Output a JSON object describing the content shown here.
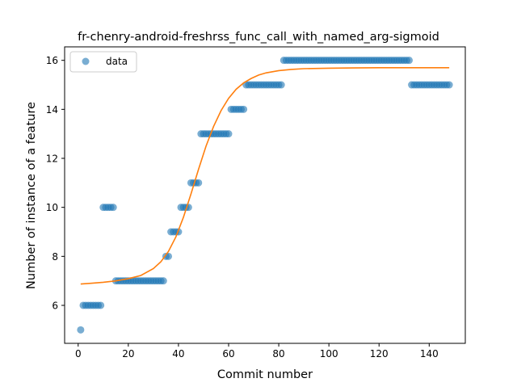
{
  "chart_data": {
    "type": "scatter",
    "title": "fr-chenry-android-freshrss_func_call_with_named_arg-sigmoid",
    "xlabel": "Commit number",
    "ylabel": "Number of instance of a feature",
    "xlim": [
      -5.4,
      154.4
    ],
    "ylim": [
      4.45,
      16.55
    ],
    "xticks": [
      0,
      20,
      40,
      60,
      80,
      100,
      120,
      140
    ],
    "yticks": [
      6,
      8,
      10,
      12,
      14,
      16
    ],
    "grid": false,
    "legend": {
      "position": "top-left",
      "entries": [
        "data"
      ]
    },
    "colors": {
      "data": "#1f77b4",
      "fit": "#ff7f0e"
    },
    "series": [
      {
        "name": "data",
        "kind": "scatter",
        "x": [
          1,
          2,
          3,
          4,
          5,
          6,
          7,
          8,
          9,
          10,
          11,
          12,
          13,
          14,
          15,
          16,
          17,
          18,
          19,
          20,
          21,
          22,
          23,
          24,
          25,
          26,
          27,
          28,
          29,
          30,
          31,
          32,
          33,
          34,
          35,
          36,
          37,
          38,
          39,
          40,
          41,
          42,
          43,
          44,
          45,
          46,
          47,
          48,
          49,
          50,
          51,
          52,
          53,
          54,
          55,
          56,
          57,
          58,
          59,
          60,
          61,
          62,
          63,
          64,
          65,
          66,
          67,
          68,
          69,
          70,
          71,
          72,
          73,
          74,
          75,
          76,
          77,
          78,
          79,
          80,
          81,
          82,
          83,
          84,
          85,
          86,
          87,
          88,
          89,
          90,
          91,
          92,
          93,
          94,
          95,
          96,
          97,
          98,
          99,
          100,
          101,
          102,
          103,
          104,
          105,
          106,
          107,
          108,
          109,
          110,
          111,
          112,
          113,
          114,
          115,
          116,
          117,
          118,
          119,
          120,
          121,
          122,
          123,
          124,
          125,
          126,
          127,
          128,
          129,
          130,
          131,
          132,
          133,
          134,
          135,
          136,
          137,
          138,
          139,
          140,
          141,
          142,
          143,
          144,
          145,
          146,
          147,
          148
        ],
        "y": [
          5,
          6,
          6,
          6,
          6,
          6,
          6,
          6,
          6,
          10,
          10,
          10,
          10,
          10,
          7,
          7,
          7,
          7,
          7,
          7,
          7,
          7,
          7,
          7,
          7,
          7,
          7,
          7,
          7,
          7,
          7,
          7,
          7,
          7,
          8,
          8,
          9,
          9,
          9,
          9,
          10,
          10,
          10,
          10,
          11,
          11,
          11,
          11,
          13,
          13,
          13,
          13,
          13,
          13,
          13,
          13,
          13,
          13,
          13,
          13,
          14,
          14,
          14,
          14,
          14,
          14,
          15,
          15,
          15,
          15,
          15,
          15,
          15,
          15,
          15,
          15,
          15,
          15,
          15,
          15,
          15,
          16,
          16,
          16,
          16,
          16,
          16,
          16,
          16,
          16,
          16,
          16,
          16,
          16,
          16,
          16,
          16,
          16,
          16,
          16,
          16,
          16,
          16,
          16,
          16,
          16,
          16,
          16,
          16,
          16,
          16,
          16,
          16,
          16,
          16,
          16,
          16,
          16,
          16,
          16,
          16,
          16,
          16,
          16,
          16,
          16,
          16,
          16,
          16,
          16,
          16,
          16,
          15,
          15,
          15,
          15,
          15,
          15,
          15,
          15,
          15,
          15,
          15,
          15,
          15,
          15,
          15,
          15
        ]
      },
      {
        "name": "",
        "kind": "line",
        "x": [
          1,
          5,
          10,
          15,
          20,
          25,
          30,
          33,
          36,
          39,
          42,
          45,
          48,
          51,
          54,
          57,
          60,
          63,
          66,
          69,
          72,
          75,
          80,
          85,
          90,
          100,
          110,
          120,
          130,
          140,
          148
        ],
        "y": [
          6.87,
          6.9,
          6.94,
          7.0,
          7.09,
          7.22,
          7.5,
          7.78,
          8.2,
          8.8,
          9.6,
          10.55,
          11.55,
          12.5,
          13.3,
          13.95,
          14.45,
          14.82,
          15.08,
          15.26,
          15.4,
          15.49,
          15.58,
          15.63,
          15.66,
          15.68,
          15.69,
          15.7,
          15.7,
          15.7,
          15.7
        ]
      }
    ]
  }
}
